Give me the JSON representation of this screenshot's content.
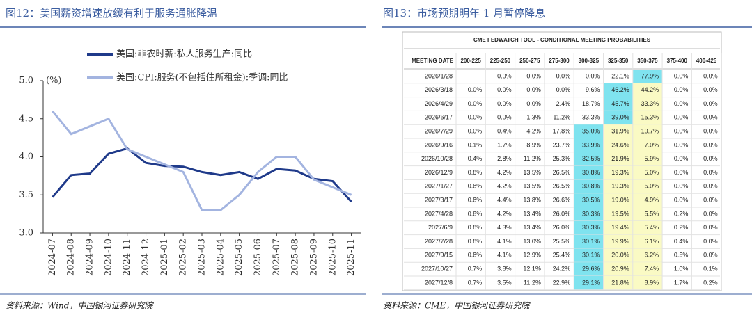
{
  "chart_data": {
    "type": "line",
    "title": "图12：美国薪资增速放缓有利于服务通胀降温",
    "source": "资料来源：Wind，中国银河证券研究院",
    "y_label": "(%)",
    "categories": [
      "2024-07",
      "2024-08",
      "2024-09",
      "2024-10",
      "2024-11",
      "2024-12",
      "2025-01",
      "2025-02",
      "2025-03",
      "2025-04",
      "2025-05",
      "2025-06",
      "2025-07",
      "2025-08",
      "2025-09",
      "2025-10",
      "2025-11"
    ],
    "series": [
      {
        "name": "美国:非农时薪:私人服务生产:同比",
        "color": "#1f3a8a",
        "values": [
          3.47,
          3.76,
          3.78,
          4.04,
          4.11,
          3.92,
          3.88,
          3.87,
          3.8,
          3.76,
          3.8,
          3.71,
          3.84,
          3.82,
          3.71,
          3.68,
          3.41
        ]
      },
      {
        "name": "美国:CPI:服务(不包括住所租金):季调:同比",
        "color": "#a3b4e0",
        "values": [
          4.6,
          4.3,
          4.4,
          4.5,
          4.1,
          4.0,
          3.9,
          3.8,
          3.3,
          3.3,
          3.5,
          3.8,
          4.0,
          4.0,
          3.7,
          3.6,
          3.5
        ]
      }
    ],
    "ylim": [
      3,
      5
    ],
    "yticks": [
      {
        "value": 3,
        "label": "3.0"
      },
      {
        "value": 3.5,
        "label": "3.5"
      },
      {
        "value": 4,
        "label": "4.0"
      },
      {
        "value": 4.5,
        "label": "4.5"
      },
      {
        "value": 5,
        "label": "5.0"
      }
    ]
  },
  "table_panel": {
    "title": "图13：市场预期明年 1 月暂停降息",
    "source": "资料来源：CME，中国银河证券研究院",
    "table": {
      "title": "CME FEDWATCH TOOL - CONDITIONAL MEETING PROBABILITIES",
      "header": [
        "MEETING DATE",
        "200-225",
        "225-250",
        "250-275",
        "275-300",
        "300-325",
        "325-350",
        "350-375",
        "375-400",
        "400-425"
      ],
      "rows": [
        [
          "2026/1/28",
          null,
          "0.0%",
          "0.0%",
          "0.0%",
          "0.0%",
          "22.1%",
          "77.9%",
          "0.0%",
          "0.0%"
        ],
        [
          "2026/3/18",
          "0.0%",
          "0.0%",
          "0.0%",
          "0.0%",
          "9.6%",
          "46.2%",
          "44.2%",
          "0.0%",
          "0.0%"
        ],
        [
          "2026/4/29",
          "0.0%",
          "0.0%",
          "0.0%",
          "2.4%",
          "18.7%",
          "45.7%",
          "33.3%",
          "0.0%",
          "0.0%"
        ],
        [
          "2026/6/17",
          "0.0%",
          "0.0%",
          "1.3%",
          "11.2%",
          "33.3%",
          "39.0%",
          "15.3%",
          "0.0%",
          "0.0%"
        ],
        [
          "2026/7/29",
          "0.0%",
          "0.4%",
          "4.2%",
          "17.8%",
          "35.0%",
          "31.9%",
          "10.7%",
          "0.0%",
          "0.0%"
        ],
        [
          "2026/9/16",
          "0.1%",
          "1.7%",
          "8.9%",
          "23.7%",
          "33.9%",
          "24.6%",
          "7.0%",
          "0.0%",
          "0.0%"
        ],
        [
          "2026/10/28",
          "0.4%",
          "2.8%",
          "11.2%",
          "25.3%",
          "32.5%",
          "21.9%",
          "5.9%",
          "0.0%",
          "0.0%"
        ],
        [
          "2026/12/9",
          "0.8%",
          "4.2%",
          "13.5%",
          "26.5%",
          "30.8%",
          "19.3%",
          "5.0%",
          "0.0%",
          "0.0%"
        ],
        [
          "2027/1/27",
          "0.8%",
          "4.2%",
          "13.5%",
          "26.5%",
          "30.8%",
          "19.3%",
          "5.0%",
          "0.0%",
          "0.0%"
        ],
        [
          "2027/3/17",
          "0.8%",
          "4.4%",
          "13.8%",
          "26.6%",
          "30.5%",
          "19.0%",
          "4.9%",
          "0.0%",
          "0.0%"
        ],
        [
          "2027/4/28",
          "0.8%",
          "4.2%",
          "13.4%",
          "26.0%",
          "30.3%",
          "19.5%",
          "5.5%",
          "0.2%",
          "0.0%"
        ],
        [
          "2027/6/9",
          "0.8%",
          "4.3%",
          "13.4%",
          "26.0%",
          "30.3%",
          "19.4%",
          "5.4%",
          "0.2%",
          "0.0%"
        ],
        [
          "2027/7/28",
          "0.8%",
          "4.1%",
          "13.0%",
          "25.5%",
          "30.1%",
          "19.9%",
          "6.1%",
          "0.4%",
          "0.0%"
        ],
        [
          "2027/9/15",
          "0.8%",
          "4.1%",
          "12.9%",
          "25.4%",
          "30.1%",
          "20.0%",
          "6.2%",
          "0.5%",
          "0.0%"
        ],
        [
          "2027/10/27",
          "0.7%",
          "3.8%",
          "12.1%",
          "24.2%",
          "29.6%",
          "20.9%",
          "7.4%",
          "1.0%",
          "0.1%"
        ],
        [
          "2027/12/8",
          "0.7%",
          "3.5%",
          "11.2%",
          "22.9%",
          "29.1%",
          "21.8%",
          "8.9%",
          "1.7%",
          "0.2%"
        ]
      ]
    }
  }
}
